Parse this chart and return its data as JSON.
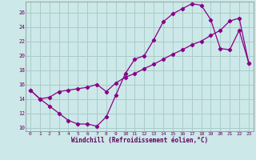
{
  "xlabel": "Windchill (Refroidissement éolien,°C)",
  "bg_color": "#cce8e8",
  "line_color": "#880088",
  "grid_color": "#aacccc",
  "xlim": [
    -0.5,
    23.5
  ],
  "ylim": [
    9.5,
    27.5
  ],
  "xticks": [
    0,
    1,
    2,
    3,
    4,
    5,
    6,
    7,
    8,
    9,
    10,
    11,
    12,
    13,
    14,
    15,
    16,
    17,
    18,
    19,
    20,
    21,
    22,
    23
  ],
  "yticks": [
    10,
    12,
    14,
    16,
    18,
    20,
    22,
    24,
    26
  ],
  "line1_x": [
    0,
    1,
    2,
    3,
    4,
    5,
    6,
    7,
    8,
    9,
    10,
    11,
    12,
    13,
    14,
    15,
    16,
    17,
    18,
    19,
    20,
    21,
    22,
    23
  ],
  "line1_y": [
    15.2,
    14.0,
    13.0,
    12.0,
    11.0,
    10.5,
    10.5,
    10.2,
    11.5,
    14.5,
    17.5,
    19.5,
    20.0,
    22.2,
    24.7,
    25.8,
    26.5,
    27.2,
    27.0,
    25.0,
    21.0,
    20.8,
    23.5,
    19.0
  ],
  "line2_x": [
    0,
    1,
    2,
    3,
    4,
    5,
    6,
    7,
    8,
    9,
    10,
    11,
    12,
    13,
    14,
    15,
    16,
    17,
    18,
    19,
    20,
    21,
    22,
    23
  ],
  "line2_y": [
    15.2,
    14.0,
    14.2,
    15.0,
    15.2,
    15.4,
    15.6,
    16.0,
    15.0,
    16.2,
    17.0,
    17.5,
    18.2,
    18.8,
    19.5,
    20.2,
    20.8,
    21.5,
    22.0,
    22.8,
    23.5,
    24.8,
    25.2,
    19.0
  ],
  "spine_color": "#888888",
  "tick_color": "#600060",
  "xlabel_fontsize": 5.5,
  "tick_fontsize": 4.5
}
